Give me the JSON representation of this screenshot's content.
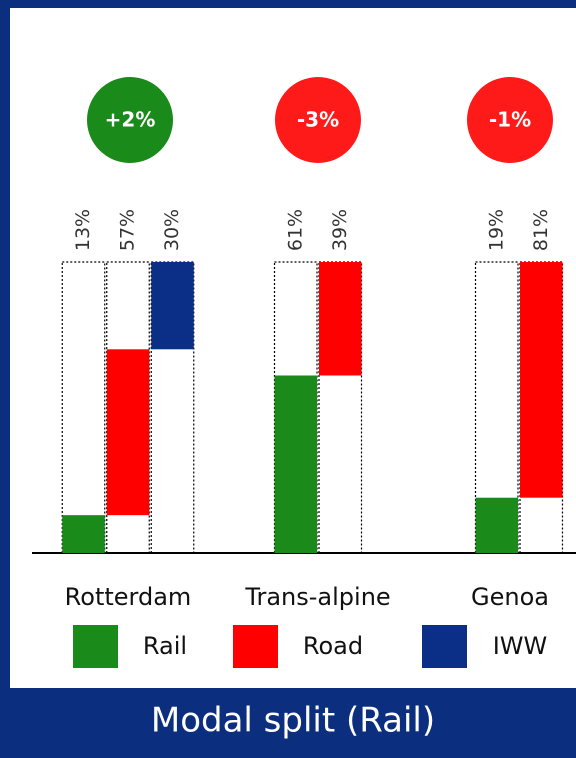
{
  "chart_data": {
    "type": "bar",
    "title": "Modal split (Rail)",
    "categories": [
      "Rotterdam",
      "Trans-alpine",
      "Genoa"
    ],
    "annotations": [
      "+2%",
      "-3%",
      "-1%"
    ],
    "annotation_colors": [
      "#1a8a1a",
      "#ff1a1a",
      "#ff1a1a"
    ],
    "series": [
      {
        "name": "Rail",
        "color": "#1a8a1a",
        "values": [
          13,
          61,
          19
        ],
        "value_labels": [
          "13%",
          "61%",
          "19%"
        ]
      },
      {
        "name": "Road",
        "color": "#ff0000",
        "values": [
          57,
          39,
          81
        ],
        "value_labels": [
          "57%",
          "39%",
          "81%"
        ]
      },
      {
        "name": "IWW",
        "color": "#0b2e86",
        "values": [
          30,
          null,
          null
        ],
        "value_labels": [
          "30%",
          null,
          null
        ]
      }
    ]
  }
}
